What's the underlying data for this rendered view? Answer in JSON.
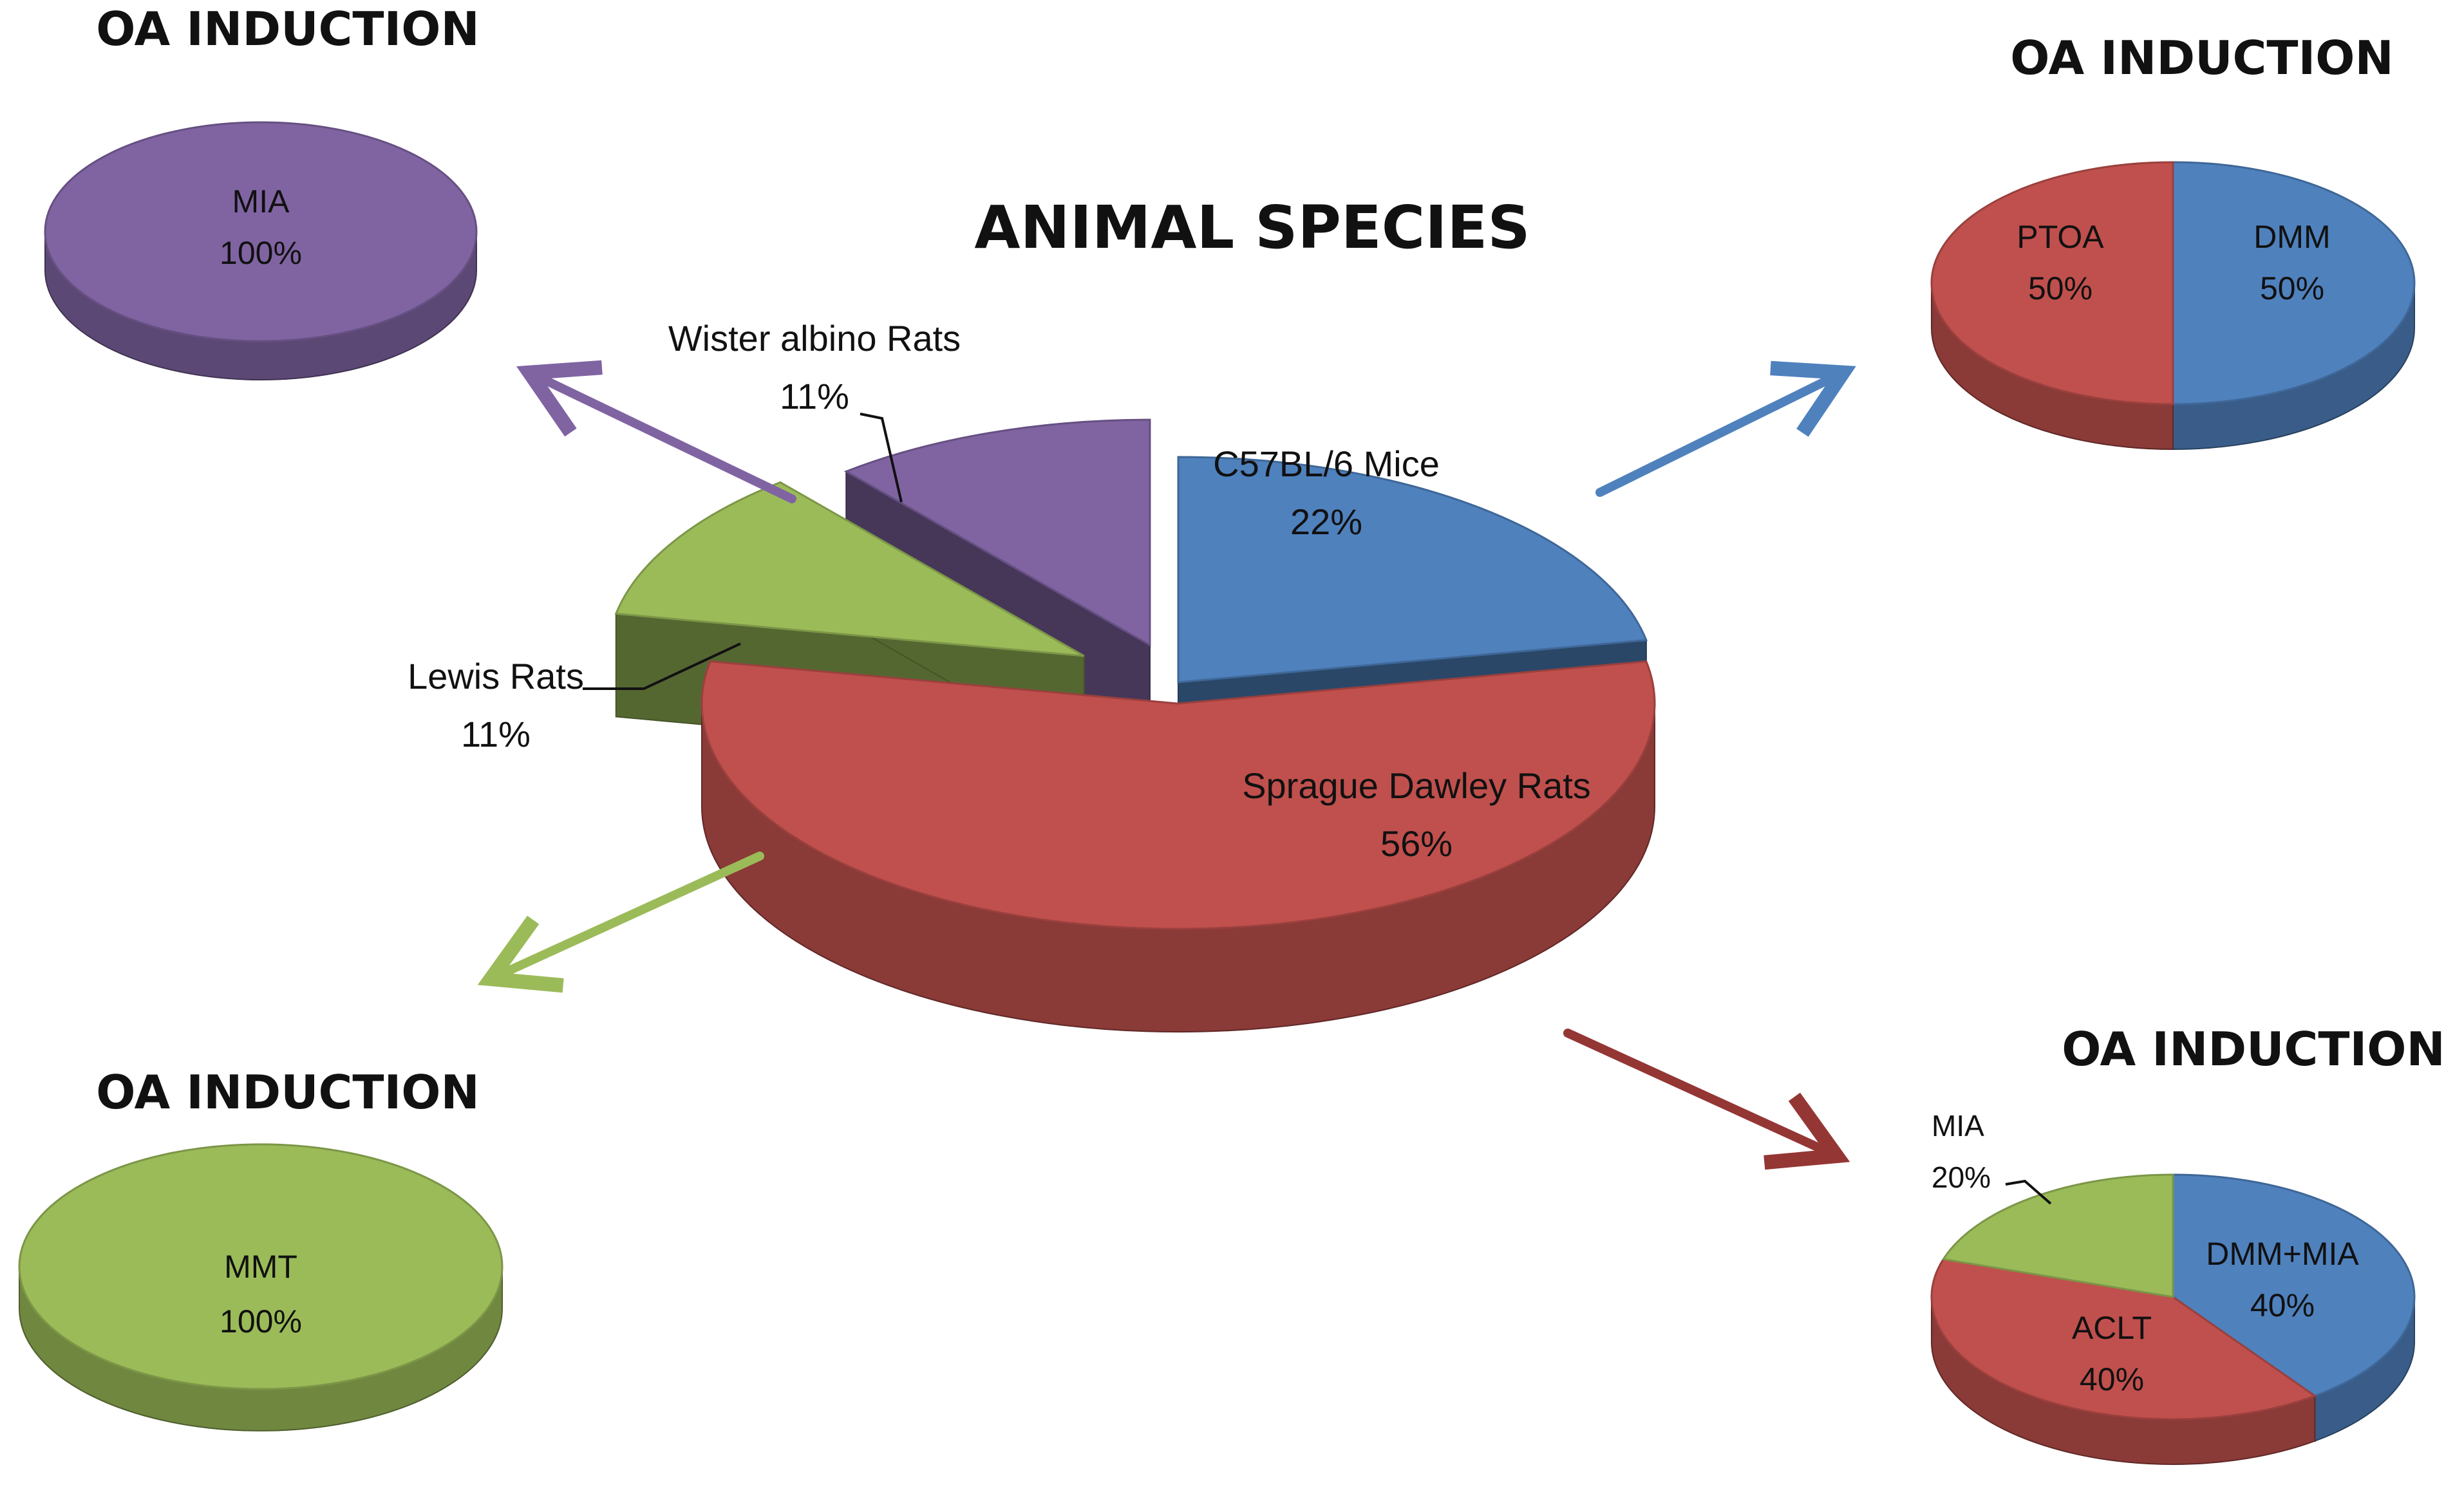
{
  "chart_data": [
    {
      "type": "pie",
      "title": "ANIMAL SPECIES",
      "categories": [
        "C57BL/6 Mice",
        "Sprague Dawley Rats",
        "Lewis Rats",
        "Wister albino Rats"
      ],
      "values": [
        22,
        56,
        11,
        11
      ],
      "value_labels": [
        "22%",
        "56%",
        "11%",
        "11%"
      ],
      "colors": [
        "#4f81bd",
        "#c0504d",
        "#9bbb59",
        "#8064a2"
      ],
      "exploded": true,
      "three_d": true
    },
    {
      "type": "pie",
      "title": "OA INDUCTION",
      "categories": [
        "MIA"
      ],
      "values": [
        100
      ],
      "value_labels": [
        "100%"
      ],
      "colors": [
        "#8064a2"
      ],
      "three_d": true
    },
    {
      "type": "pie",
      "title": "OA INDUCTION",
      "categories": [
        "DMM",
        "PTOA"
      ],
      "values": [
        50,
        50
      ],
      "value_labels": [
        "50%",
        "50%"
      ],
      "colors": [
        "#4f81bd",
        "#c0504d"
      ],
      "three_d": true
    },
    {
      "type": "pie",
      "title": "OA INDUCTION",
      "categories": [
        "MMT"
      ],
      "values": [
        100
      ],
      "value_labels": [
        "100%"
      ],
      "colors": [
        "#9bbb59"
      ],
      "three_d": true
    },
    {
      "type": "pie",
      "title": "OA INDUCTION",
      "categories": [
        "DMM+MIA",
        "ACLT",
        "MIA"
      ],
      "values": [
        40,
        40,
        20
      ],
      "value_labels": [
        "40%",
        "40%",
        "20%"
      ],
      "colors": [
        "#4f81bd",
        "#c0504d",
        "#9bbb59"
      ],
      "three_d": true
    }
  ]
}
